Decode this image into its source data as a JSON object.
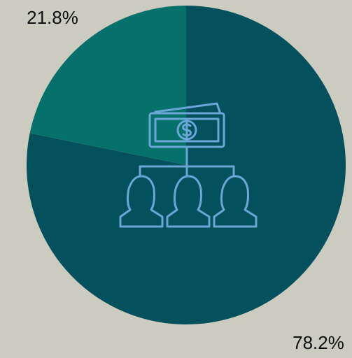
{
  "chart_data": {
    "type": "pie",
    "values": [
      78.2,
      21.8
    ],
    "value_labels": [
      "78.2%",
      "21.8%"
    ],
    "colors": [
      "#04505c",
      "#06706a"
    ]
  }
}
